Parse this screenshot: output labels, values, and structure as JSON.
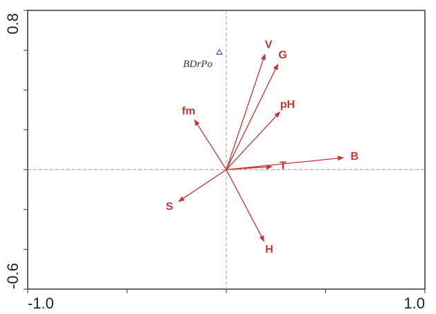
{
  "chart_data": {
    "type": "biplot",
    "xlim": [
      -1,
      1
    ],
    "ylim": [
      -0.6,
      0.8
    ],
    "xticks": [
      {
        "value": -1,
        "label": "-1.0"
      },
      {
        "value": 1,
        "label": "1.0"
      }
    ],
    "yticks": [
      -0.6,
      0.8
    ],
    "xminor": [
      -0.5,
      0,
      0.5
    ],
    "yminor": [
      -0.4,
      -0.2,
      0,
      0.2,
      0.4,
      0.6
    ],
    "vector_color": "#c83232",
    "sample_color": "#3a3aa0",
    "vectors": [
      {
        "name": "V",
        "x": 0.195,
        "y": 0.58
      },
      {
        "name": "G",
        "x": 0.26,
        "y": 0.53
      },
      {
        "name": "pH",
        "x": 0.27,
        "y": 0.29
      },
      {
        "name": "fm",
        "x": -0.16,
        "y": 0.25
      },
      {
        "name": "B",
        "x": 0.59,
        "y": 0.06
      },
      {
        "name": "T",
        "x": 0.23,
        "y": 0.015
      },
      {
        "name": "S",
        "x": -0.24,
        "y": -0.16
      },
      {
        "name": "H",
        "x": 0.19,
        "y": -0.36
      }
    ],
    "samples": [
      {
        "name": "BDrPo",
        "x": -0.035,
        "y": 0.59
      }
    ]
  }
}
